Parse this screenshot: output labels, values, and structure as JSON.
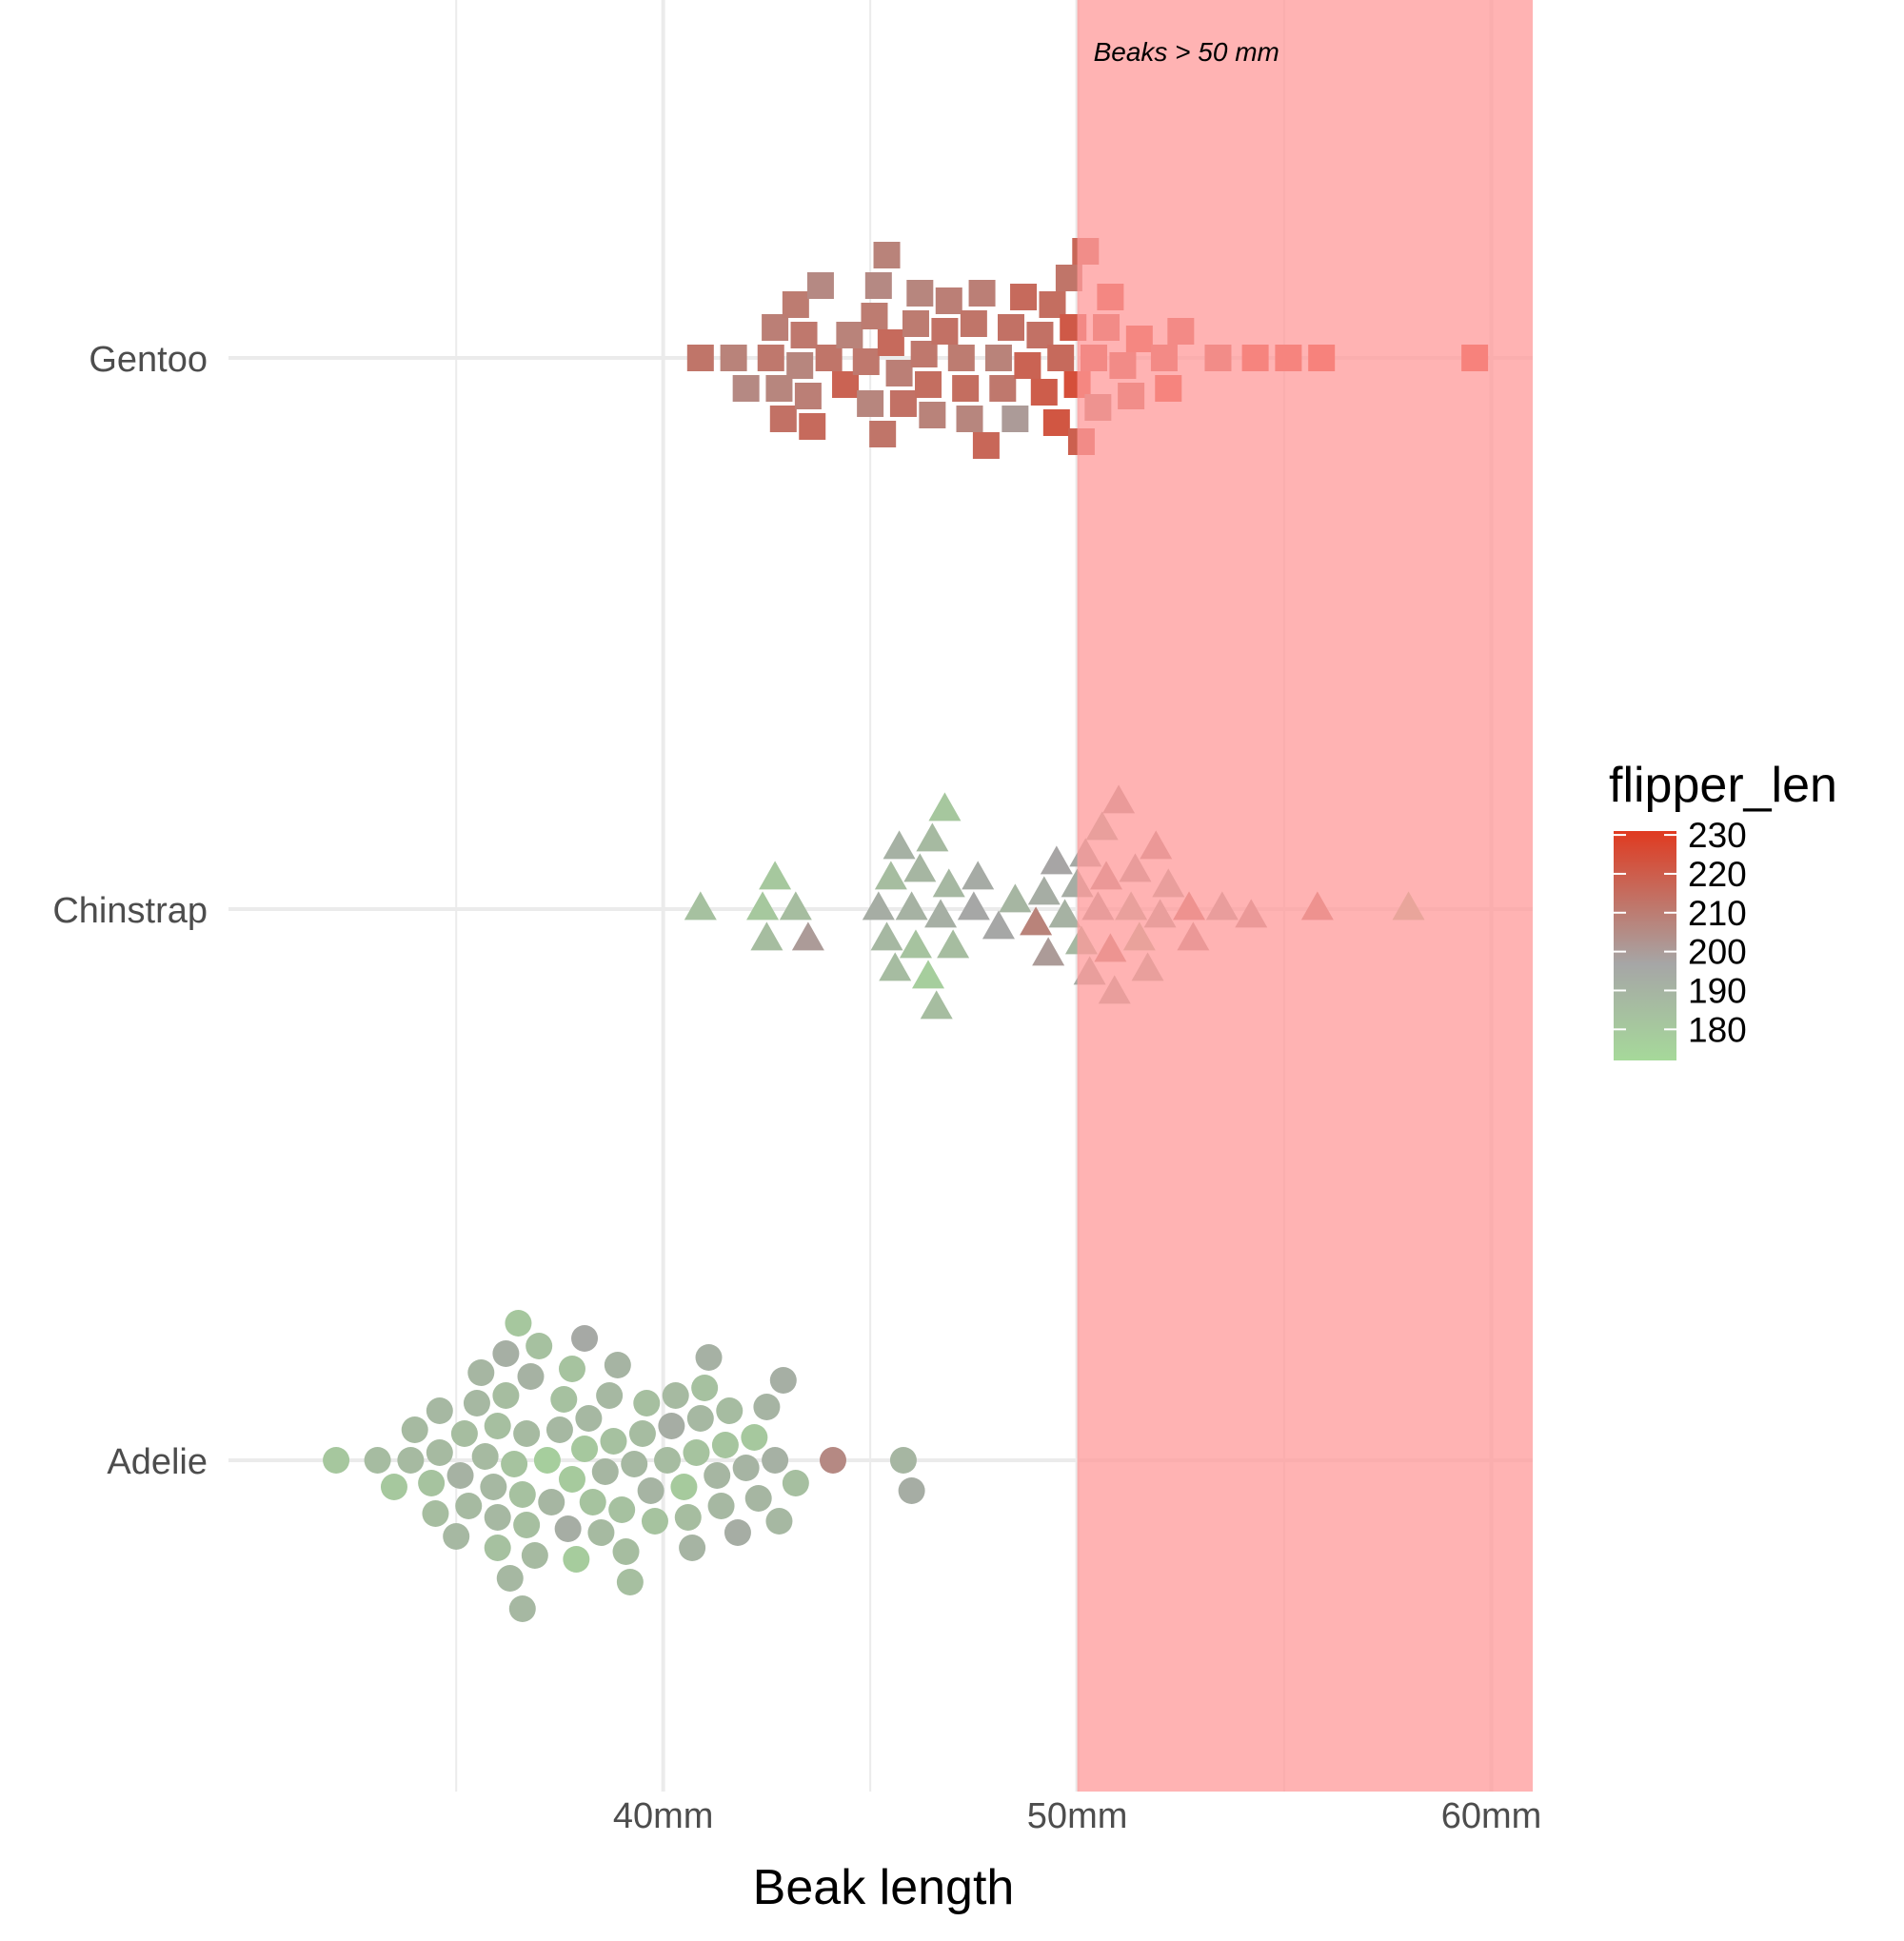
{
  "chart_data": {
    "type": "scatter",
    "subtype": "beeswarm",
    "xlabel": "Beak length",
    "ylabel": "",
    "x_tick_labels": [
      "40mm",
      "50mm",
      "60mm"
    ],
    "x_ticks": [
      40,
      50,
      60
    ],
    "x_minor_gridlines": [
      35,
      45,
      55
    ],
    "xlim": [
      29.5,
      61
    ],
    "y_categories": [
      "Adelie",
      "Chinstrap",
      "Gentoo"
    ],
    "grid": true,
    "highlight_band": {
      "from": 50,
      "to": 61,
      "color": "#ff9999",
      "label": "Beaks > 50 mm"
    },
    "color_scale": {
      "name": "flipper_len",
      "ticks": [
        230,
        220,
        210,
        200,
        190,
        180
      ],
      "domain": [
        172,
        231
      ],
      "colors": [
        "#a6d99a",
        "#a6a6a6",
        "#e03a20"
      ],
      "legend_position": "right"
    },
    "series": [
      {
        "name": "Adelie",
        "shape": "circle",
        "points": [
          [
            32.1,
            182
          ],
          [
            33.1,
            188
          ],
          [
            33.5,
            181
          ],
          [
            33.9,
            189
          ],
          [
            34,
            189
          ],
          [
            34.4,
            184
          ],
          [
            34.5,
            187
          ],
          [
            34.6,
            189
          ],
          [
            34.6,
            190
          ],
          [
            35,
            190
          ],
          [
            35.1,
            193
          ],
          [
            35.2,
            187
          ],
          [
            35.3,
            189
          ],
          [
            35.5,
            190
          ],
          [
            35.6,
            191
          ],
          [
            35.7,
            189
          ],
          [
            35.9,
            190
          ],
          [
            36,
            186
          ],
          [
            36,
            190
          ],
          [
            36,
            185
          ],
          [
            36.2,
            187
          ],
          [
            36.2,
            195
          ],
          [
            36.3,
            190
          ],
          [
            36.4,
            184
          ],
          [
            36.5,
            182
          ],
          [
            36.6,
            185
          ],
          [
            36.6,
            190
          ],
          [
            36.7,
            189
          ],
          [
            36.7,
            186
          ],
          [
            36.8,
            193
          ],
          [
            36.9,
            189
          ],
          [
            37,
            185
          ],
          [
            37.2,
            178
          ],
          [
            37.3,
            191
          ],
          [
            37.5,
            190
          ],
          [
            37.6,
            185
          ],
          [
            37.7,
            196
          ],
          [
            37.8,
            180
          ],
          [
            37.8,
            184
          ],
          [
            37.9,
            179
          ],
          [
            38.1,
            181
          ],
          [
            38.1,
            198
          ],
          [
            38.2,
            190
          ],
          [
            38.3,
            184
          ],
          [
            38.5,
            189
          ],
          [
            38.6,
            191
          ],
          [
            38.7,
            190
          ],
          [
            38.8,
            185
          ],
          [
            38.9,
            192
          ],
          [
            39,
            185
          ],
          [
            39.1,
            187
          ],
          [
            39.2,
            186
          ],
          [
            39.3,
            190
          ],
          [
            39.5,
            188
          ],
          [
            39.6,
            186
          ],
          [
            39.7,
            192
          ],
          [
            39.8,
            184
          ],
          [
            40.1,
            188
          ],
          [
            40.2,
            196
          ],
          [
            40.3,
            189
          ],
          [
            40.5,
            180
          ],
          [
            40.6,
            187
          ],
          [
            40.7,
            192
          ],
          [
            40.8,
            184
          ],
          [
            40.9,
            190
          ],
          [
            41,
            185
          ],
          [
            41.1,
            194
          ],
          [
            41.3,
            191
          ],
          [
            41.4,
            190
          ],
          [
            41.5,
            183
          ],
          [
            41.6,
            188
          ],
          [
            41.8,
            196
          ],
          [
            42,
            192
          ],
          [
            42.2,
            181
          ],
          [
            42.3,
            191
          ],
          [
            42.5,
            192
          ],
          [
            42.7,
            194
          ],
          [
            42.8,
            190
          ],
          [
            42.9,
            195
          ],
          [
            43.2,
            186
          ],
          [
            44.1,
            208
          ],
          [
            45.8,
            191
          ],
          [
            46,
            196
          ]
        ]
      },
      {
        "name": "Chinstrap",
        "shape": "triangle",
        "points": [
          [
            40.9,
            185
          ],
          [
            42.4,
            181
          ],
          [
            42.5,
            187
          ],
          [
            42.7,
            181
          ],
          [
            43.2,
            187
          ],
          [
            43.5,
            203
          ],
          [
            45.2,
            196
          ],
          [
            45.4,
            190
          ],
          [
            45.5,
            187
          ],
          [
            45.6,
            188
          ],
          [
            45.7,
            194
          ],
          [
            46,
            193
          ],
          [
            46.1,
            184
          ],
          [
            46.2,
            191
          ],
          [
            46.4,
            178
          ],
          [
            46.5,
            189
          ],
          [
            46.6,
            187
          ],
          [
            46.7,
            195
          ],
          [
            46.8,
            182
          ],
          [
            46.9,
            190
          ],
          [
            47,
            187
          ],
          [
            47.5,
            199
          ],
          [
            47.6,
            197
          ],
          [
            48.1,
            199
          ],
          [
            48.5,
            191
          ],
          [
            49,
            210
          ],
          [
            49.2,
            196
          ],
          [
            49.3,
            203
          ],
          [
            49.5,
            200
          ],
          [
            49.7,
            193
          ],
          [
            50,
            196
          ],
          [
            50.1,
            190
          ],
          [
            50.2,
            198
          ],
          [
            50.3,
            197
          ],
          [
            50.5,
            201
          ],
          [
            50.6,
            195
          ],
          [
            50.7,
            205
          ],
          [
            50.8,
            210
          ],
          [
            50.9,
            196
          ],
          [
            51,
            203
          ],
          [
            51.3,
            193
          ],
          [
            51.4,
            201
          ],
          [
            51.5,
            187
          ],
          [
            51.7,
            195
          ],
          [
            51.9,
            205
          ],
          [
            52,
            197
          ],
          [
            52.2,
            197
          ],
          [
            52.7,
            212
          ],
          [
            52.8,
            205
          ],
          [
            53.5,
            198
          ],
          [
            54.2,
            204
          ],
          [
            55.8,
            212
          ],
          [
            58,
            181
          ]
        ]
      },
      {
        "name": "Gentoo",
        "shape": "square",
        "points": [
          [
            40.9,
            214
          ],
          [
            41.7,
            210
          ],
          [
            42,
            208
          ],
          [
            42.6,
            213
          ],
          [
            42.7,
            211
          ],
          [
            42.8,
            209
          ],
          [
            42.9,
            215
          ],
          [
            43.2,
            212
          ],
          [
            43.3,
            209
          ],
          [
            43.4,
            213
          ],
          [
            43.5,
            211
          ],
          [
            43.6,
            217
          ],
          [
            43.8,
            208
          ],
          [
            44,
            214
          ],
          [
            44.4,
            219
          ],
          [
            44.5,
            210
          ],
          [
            44.9,
            213
          ],
          [
            45,
            209
          ],
          [
            45.1,
            212
          ],
          [
            45.2,
            208
          ],
          [
            45.3,
            214
          ],
          [
            45.4,
            210
          ],
          [
            45.5,
            217
          ],
          [
            45.7,
            211
          ],
          [
            45.8,
            215
          ],
          [
            46.1,
            212
          ],
          [
            46.2,
            209
          ],
          [
            46.3,
            213
          ],
          [
            46.4,
            216
          ],
          [
            46.5,
            210
          ],
          [
            46.8,
            215
          ],
          [
            46.9,
            211
          ],
          [
            47.2,
            212
          ],
          [
            47.3,
            216
          ],
          [
            47.4,
            209
          ],
          [
            47.5,
            214
          ],
          [
            47.7,
            211
          ],
          [
            47.8,
            218
          ],
          [
            48.1,
            210
          ],
          [
            48.2,
            213
          ],
          [
            48.4,
            215
          ],
          [
            48.5,
            203
          ],
          [
            48.7,
            217
          ],
          [
            48.8,
            219
          ],
          [
            49.1,
            215
          ],
          [
            49.2,
            221
          ],
          [
            49.4,
            216
          ],
          [
            49.5,
            223
          ],
          [
            49.6,
            217
          ],
          [
            49.8,
            214
          ],
          [
            49.9,
            222
          ],
          [
            50,
            225
          ],
          [
            50.1,
            220
          ],
          [
            50.2,
            218
          ],
          [
            50.4,
            222
          ],
          [
            50.5,
            211
          ],
          [
            50.7,
            220
          ],
          [
            50.8,
            224
          ],
          [
            51.1,
            220
          ],
          [
            51.3,
            218
          ],
          [
            51.5,
            225
          ],
          [
            52.1,
            221
          ],
          [
            52.2,
            228
          ],
          [
            52.5,
            221
          ],
          [
            53.4,
            219
          ],
          [
            54.3,
            228
          ],
          [
            55.1,
            228
          ],
          [
            55.9,
            230
          ],
          [
            59.6,
            230
          ]
        ]
      }
    ]
  }
}
